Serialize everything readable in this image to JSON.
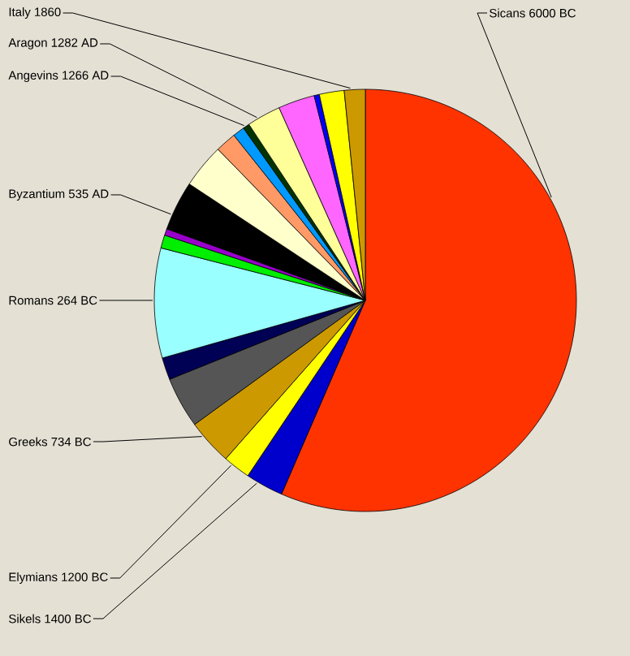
{
  "chart_data": {
    "type": "pie",
    "categories": [
      "Sicans 6000 BC",
      "Sikels 1400 BC",
      "Elymians 1200 BC",
      "Greeks 734 BC",
      null,
      null,
      "Romans 264 BC",
      null,
      null,
      "Byzantium 535 AD",
      null,
      null,
      null,
      "Angevins 1266 AD",
      "Aragon 1282 AD",
      null,
      null,
      null,
      "Italy 1860"
    ],
    "values": [
      56.5,
      2.9,
      2.1,
      3.5,
      3.9,
      1.7,
      8.4,
      1.0,
      0.5,
      3.8,
      3.4,
      1.6,
      0.9,
      0.5,
      2.6,
      2.8,
      0.4,
      1.9,
      1.6
    ],
    "colors": [
      "#ff3300",
      "#0000cc",
      "#ffff00",
      "#cc9900",
      "#555555",
      "#000055",
      "#99ffff",
      "#00ee00",
      "#9900cc",
      "#000000",
      "#ffffcc",
      "#ff9966",
      "#0099ff",
      "#003300",
      "#ffff99",
      "#ff66ff",
      "#0000ff",
      "#ffff00",
      "#cc9900"
    ]
  }
}
